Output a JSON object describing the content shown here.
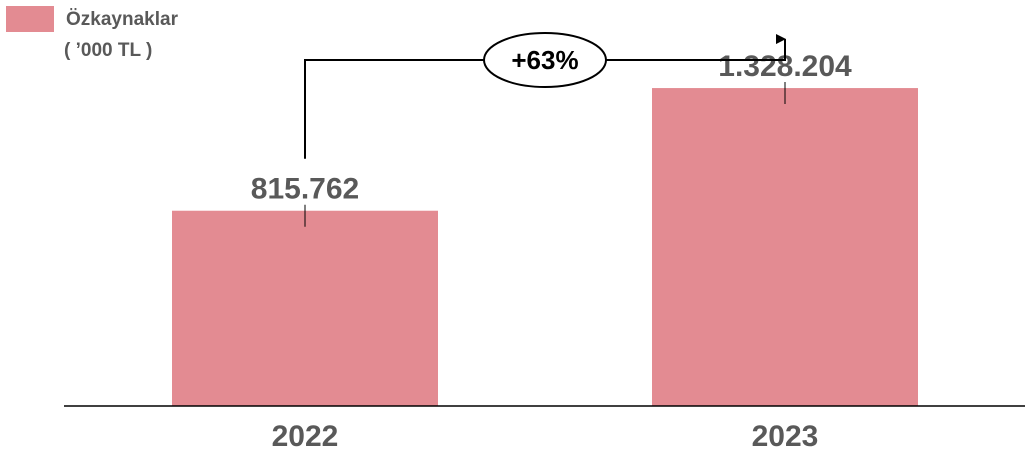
{
  "chart_data": {
    "type": "bar",
    "legend": {
      "label": "Özkaynaklar",
      "unit": "( ’000 TL )",
      "position": "top-left"
    },
    "categories": [
      "2022",
      "2023"
    ],
    "values": [
      815762,
      1328204
    ],
    "value_labels": [
      "815.762",
      "1.328.204"
    ],
    "ylim": [
      0,
      1600000
    ],
    "growth_label": "+63%",
    "grid": false,
    "colors": {
      "bar": "#E38B92",
      "text": "#595959",
      "axis": "#000000"
    }
  }
}
